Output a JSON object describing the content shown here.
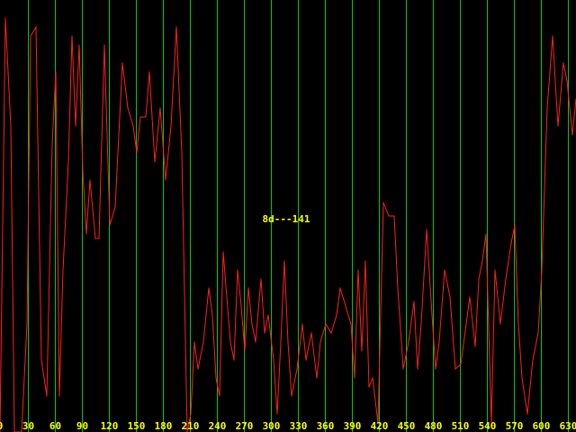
{
  "chart_data": {
    "type": "line",
    "title": "",
    "xlabel": "",
    "ylabel": "",
    "annotation": "8d---141",
    "xlim": [
      0,
      640
    ],
    "ylim": [
      0,
      480
    ],
    "xticks": [
      0,
      30,
      60,
      90,
      120,
      150,
      180,
      210,
      240,
      270,
      300,
      330,
      360,
      390,
      420,
      450,
      480,
      510,
      540,
      570,
      600,
      630
    ],
    "grid": true,
    "colors": {
      "background": "#000000",
      "grid": "#00cc00",
      "series": "#ff2020",
      "text": "#ffff00"
    },
    "series": [
      {
        "values": [
          [
            0,
            480
          ],
          [
            6,
            20
          ],
          [
            12,
            140
          ],
          [
            16,
            480
          ],
          [
            24,
            480
          ],
          [
            30,
            360
          ],
          [
            34,
            40
          ],
          [
            40,
            30
          ],
          [
            46,
            400
          ],
          [
            52,
            440
          ],
          [
            58,
            160
          ],
          [
            62,
            80
          ],
          [
            66,
            440
          ],
          [
            70,
            300
          ],
          [
            76,
            180
          ],
          [
            80,
            40
          ],
          [
            84,
            140
          ],
          [
            88,
            50
          ],
          [
            92,
            190
          ],
          [
            96,
            260
          ],
          [
            100,
            200
          ],
          [
            106,
            265
          ],
          [
            110,
            265
          ],
          [
            116,
            50
          ],
          [
            122,
            250
          ],
          [
            128,
            230
          ],
          [
            136,
            70
          ],
          [
            142,
            120
          ],
          [
            148,
            140
          ],
          [
            152,
            170
          ],
          [
            156,
            130
          ],
          [
            162,
            130
          ],
          [
            166,
            80
          ],
          [
            172,
            180
          ],
          [
            178,
            120
          ],
          [
            184,
            200
          ],
          [
            190,
            140
          ],
          [
            196,
            30
          ],
          [
            202,
            170
          ],
          [
            208,
            480
          ],
          [
            212,
            460
          ],
          [
            216,
            380
          ],
          [
            220,
            410
          ],
          [
            226,
            380
          ],
          [
            232,
            320
          ],
          [
            236,
            350
          ],
          [
            240,
            420
          ],
          [
            244,
            440
          ],
          [
            248,
            280
          ],
          [
            252,
            330
          ],
          [
            256,
            380
          ],
          [
            260,
            400
          ],
          [
            264,
            300
          ],
          [
            268,
            340
          ],
          [
            272,
            390
          ],
          [
            276,
            320
          ],
          [
            280,
            360
          ],
          [
            284,
            380
          ],
          [
            290,
            310
          ],
          [
            294,
            370
          ],
          [
            298,
            350
          ],
          [
            304,
            400
          ],
          [
            308,
            460
          ],
          [
            312,
            380
          ],
          [
            316,
            290
          ],
          [
            320,
            380
          ],
          [
            324,
            440
          ],
          [
            330,
            410
          ],
          [
            336,
            360
          ],
          [
            340,
            400
          ],
          [
            346,
            370
          ],
          [
            352,
            420
          ],
          [
            356,
            380
          ],
          [
            362,
            360
          ],
          [
            368,
            370
          ],
          [
            374,
            350
          ],
          [
            378,
            320
          ],
          [
            384,
            340
          ],
          [
            390,
            360
          ],
          [
            394,
            420
          ],
          [
            398,
            300
          ],
          [
            402,
            390
          ],
          [
            406,
            290
          ],
          [
            410,
            430
          ],
          [
            414,
            420
          ],
          [
            420,
            470
          ],
          [
            426,
            225
          ],
          [
            432,
            240
          ],
          [
            438,
            240
          ],
          [
            442,
            320
          ],
          [
            448,
            410
          ],
          [
            454,
            380
          ],
          [
            460,
            335
          ],
          [
            464,
            410
          ],
          [
            468,
            360
          ],
          [
            474,
            255
          ],
          [
            480,
            350
          ],
          [
            484,
            410
          ],
          [
            488,
            380
          ],
          [
            494,
            300
          ],
          [
            500,
            330
          ],
          [
            506,
            410
          ],
          [
            512,
            405
          ],
          [
            518,
            360
          ],
          [
            522,
            330
          ],
          [
            528,
            385
          ],
          [
            532,
            310
          ],
          [
            536,
            290
          ],
          [
            540,
            260
          ],
          [
            546,
            470
          ],
          [
            550,
            300
          ],
          [
            556,
            360
          ],
          [
            562,
            310
          ],
          [
            568,
            270
          ],
          [
            572,
            250
          ],
          [
            576,
            360
          ],
          [
            580,
            420
          ],
          [
            586,
            460
          ],
          [
            592,
            400
          ],
          [
            598,
            370
          ],
          [
            602,
            300
          ],
          [
            608,
            120
          ],
          [
            614,
            40
          ],
          [
            620,
            140
          ],
          [
            626,
            70
          ],
          [
            630,
            90
          ],
          [
            636,
            150
          ],
          [
            640,
            110
          ]
        ]
      }
    ]
  }
}
